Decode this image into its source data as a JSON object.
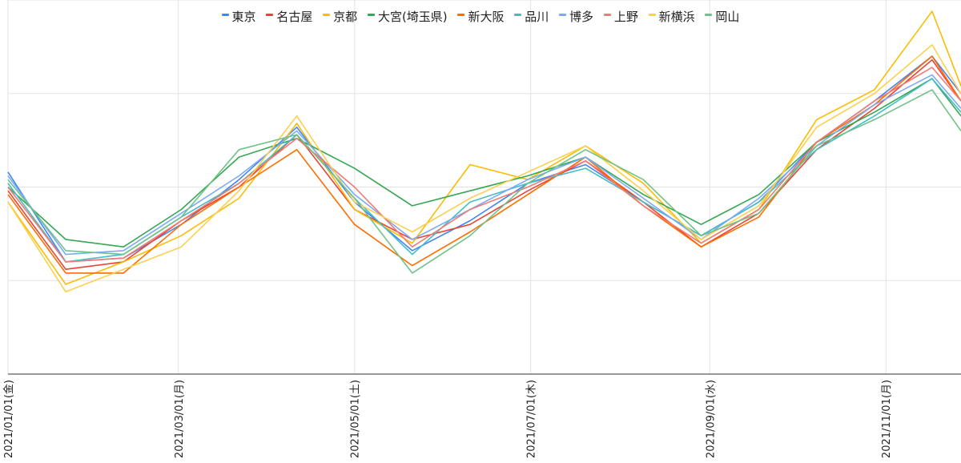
{
  "chart_data": {
    "type": "line",
    "title": "",
    "xlabel": "",
    "ylabel": "",
    "y_tick_labels_shown": false,
    "grid": true,
    "legend": "top",
    "x": [
      "2021-01-01",
      "2021-01-21",
      "2021-02-10",
      "2021-03-02",
      "2021-03-22",
      "2021-04-11",
      "2021-05-01",
      "2021-05-21",
      "2021-06-10",
      "2021-06-30",
      "2021-07-20",
      "2021-08-09",
      "2021-08-29",
      "2021-09-18",
      "2021-10-08",
      "2021-10-28",
      "2021-11-17",
      "2021-11-27"
    ],
    "x_tick_labels": [
      "2021/01/01(金)",
      "2021/03/01(月)",
      "2021/05/01(土)",
      "2021/07/01(木)",
      "2021/09/01(水)",
      "2021/11/01(月)"
    ],
    "x_tick_dates": [
      "2021-01-01",
      "2021-03-01",
      "2021-05-01",
      "2021-07-01",
      "2021-09-01",
      "2021-11-01"
    ],
    "ylim": [
      0,
      100
    ],
    "y_gridlines": [
      0,
      25,
      50,
      75,
      100
    ],
    "series": [
      {
        "name": "東京",
        "color": "#4285f4",
        "values": [
          54,
          30,
          31,
          40,
          52,
          66,
          46,
          33,
          41,
          51,
          56,
          46,
          37,
          46,
          62,
          73,
          85,
          75
        ]
      },
      {
        "name": "名古屋",
        "color": "#ea4335",
        "values": [
          49,
          28,
          30,
          41,
          50,
          64,
          44,
          36,
          40,
          49,
          57,
          46,
          34,
          43,
          60,
          71,
          84,
          73
        ]
      },
      {
        "name": "京都",
        "color": "#fbbc04",
        "values": [
          46,
          24,
          30,
          37,
          47,
          67,
          44,
          35,
          56,
          52,
          61,
          51,
          35,
          44,
          68,
          76,
          97,
          77
        ]
      },
      {
        "name": "大宮(埼玉県)",
        "color": "#34a853",
        "values": [
          50,
          36,
          34,
          44,
          58,
          63,
          55,
          45,
          49,
          53,
          58,
          48,
          40,
          48,
          62,
          70,
          79,
          69
        ]
      },
      {
        "name": "新大阪",
        "color": "#ff6d01",
        "values": [
          48,
          27,
          27,
          40,
          50,
          60,
          40,
          29,
          38,
          48,
          58,
          45,
          34,
          42,
          62,
          72,
          85,
          73
        ]
      },
      {
        "name": "品川",
        "color": "#46bdc6",
        "values": [
          51,
          30,
          32,
          42,
          51,
          64,
          47,
          32,
          46,
          51,
          55,
          46,
          37,
          46,
          60,
          69,
          79,
          70
        ]
      },
      {
        "name": "博多",
        "color": "#7baaf7",
        "values": [
          53,
          32,
          33,
          43,
          53,
          65,
          48,
          36,
          44,
          52,
          58,
          47,
          36,
          47,
          61,
          72,
          80,
          71
        ]
      },
      {
        "name": "上野",
        "color": "#f07b72",
        "values": [
          50,
          30,
          31,
          41,
          51,
          63,
          50,
          34,
          44,
          50,
          57,
          45,
          35,
          44,
          62,
          73,
          82,
          73
        ]
      },
      {
        "name": "新横浜",
        "color": "#fcd04f",
        "values": [
          46,
          22,
          28,
          34,
          49,
          69,
          46,
          38,
          47,
          54,
          61,
          49,
          36,
          45,
          66,
          75,
          88,
          75
        ]
      },
      {
        "name": "岡山",
        "color": "#71c287",
        "values": [
          52,
          33,
          32,
          42,
          60,
          64,
          47,
          27,
          37,
          51,
          60,
          52,
          37,
          43,
          61,
          68,
          76,
          65
        ]
      }
    ]
  }
}
